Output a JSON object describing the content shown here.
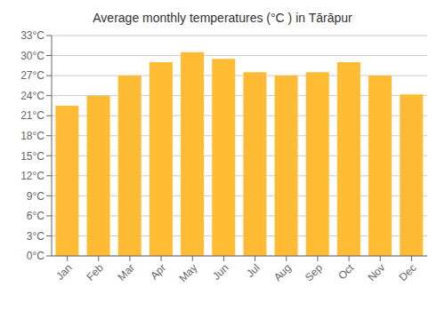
{
  "chart_data": {
    "type": "bar",
    "title": "Average monthly temperatures (°C ) in Tārāpur",
    "categories": [
      "Jan",
      "Feb",
      "Mar",
      "Apr",
      "May",
      "Jun",
      "Jul",
      "Aug",
      "Sep",
      "Oct",
      "Nov",
      "Dec"
    ],
    "values": [
      22.5,
      24.0,
      27.0,
      29.0,
      30.5,
      29.5,
      27.5,
      27.0,
      27.5,
      29.0,
      27.0,
      24.2
    ],
    "color": "#FFBB33",
    "ylim": [
      0,
      33
    ],
    "yticks": [
      {
        "value": 0,
        "label": "0°C"
      },
      {
        "value": 3,
        "label": "3°C"
      },
      {
        "value": 6,
        "label": "6°C"
      },
      {
        "value": 9,
        "label": "9°C"
      },
      {
        "value": 12,
        "label": "12°C"
      },
      {
        "value": 15,
        "label": "15°C"
      },
      {
        "value": 18,
        "label": "18°C"
      },
      {
        "value": 21,
        "label": "21°C"
      },
      {
        "value": 24,
        "label": "24°C"
      },
      {
        "value": 27,
        "label": "27°C"
      },
      {
        "value": 30,
        "label": "30°C"
      },
      {
        "value": 33,
        "label": "33°C"
      }
    ],
    "grid": true
  }
}
